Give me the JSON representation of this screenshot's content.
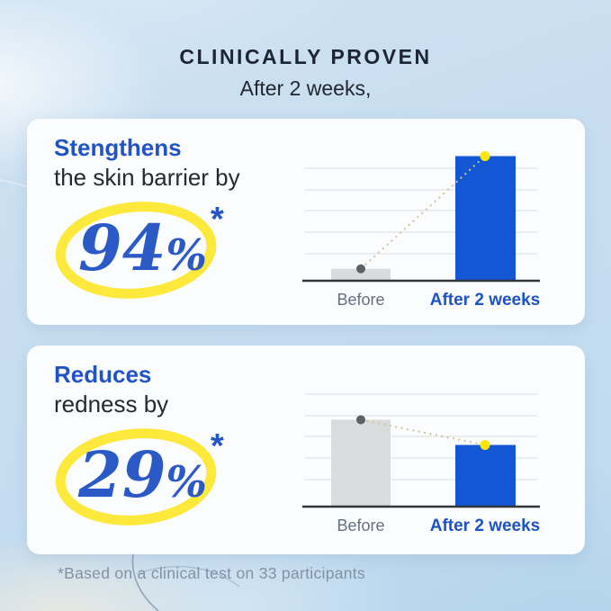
{
  "header": {
    "title": "CLINICALLY PROVEN",
    "subtitle": "After 2 weeks,"
  },
  "cards": [
    {
      "heading_accent": "Stengthens",
      "heading_rest": "the skin barrier by",
      "stat": {
        "value": "94",
        "unit": "%",
        "footnote_marker": "*"
      }
    },
    {
      "heading_accent": "Reduces",
      "heading_rest": "redness by",
      "stat": {
        "value": "29",
        "unit": "%",
        "footnote_marker": "*"
      }
    }
  ],
  "footnote": "*Based on a clinical test on 33 participants",
  "chart_data": [
    {
      "type": "bar",
      "categories": [
        "Before",
        "After 2 weeks"
      ],
      "values": [
        9,
        94
      ],
      "ylim": [
        0,
        95
      ],
      "grid": true,
      "legend": false,
      "bar_colors": [
        "#d9dbdd",
        "#1457d5"
      ],
      "dot_colors": [
        "#5d6166",
        "#ffe50a"
      ],
      "connector_color": "#cfc593",
      "label_colors": [
        "#657080",
        "#1c54c8"
      ]
    },
    {
      "type": "bar",
      "categories": [
        "Before",
        "After 2 weeks"
      ],
      "values": [
        100,
        71
      ],
      "ylim": [
        0,
        145
      ],
      "grid": true,
      "legend": false,
      "bar_colors": [
        "#d9dbdd",
        "#1457d5"
      ],
      "dot_colors": [
        "#5d6166",
        "#ffe50a"
      ],
      "connector_color": "#cfc593",
      "label_colors": [
        "#657080",
        "#1c54c8"
      ]
    }
  ],
  "colors": {
    "background_blue": "#c6ddf0",
    "card_background": "#fbfcfd",
    "title_navy": "#1d2433",
    "accent_blue": "#1f53c6",
    "bar_blue": "#1457d5",
    "bar_gray": "#d9dbdd",
    "highlight_yellow": "#fde93c",
    "footnote_gray": "#8291a4"
  }
}
